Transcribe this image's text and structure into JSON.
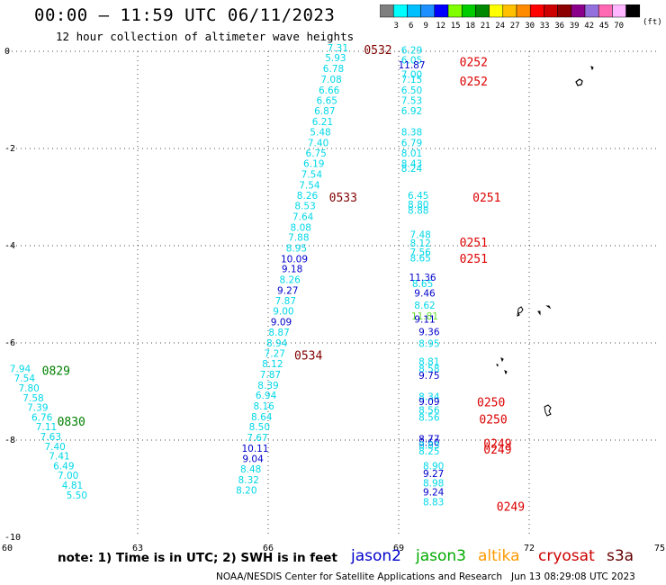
{
  "header": {
    "title": "00:00 – 11:59 UTC 06/11/2023",
    "subtitle": "12 hour collection of altimeter wave heights"
  },
  "colorbar": {
    "colors": [
      "#7f7f7f",
      "#00ffff",
      "#00bfff",
      "#1e90ff",
      "#0000ff",
      "#7fff00",
      "#00cc00",
      "#008800",
      "#ffff00",
      "#ffc000",
      "#ff8c00",
      "#ff0000",
      "#cc0000",
      "#8b0000",
      "#8b008b",
      "#9370db",
      "#ff69b4",
      "#ffb6ff",
      "#000000"
    ],
    "labels": [
      "3",
      "6",
      "9",
      "12",
      "15",
      "18",
      "21",
      "24",
      "27",
      "30",
      "33",
      "36",
      "39",
      "42",
      "45",
      "70"
    ],
    "unit": "(ft)"
  },
  "axes": {
    "x_ticks": [
      "60",
      "63",
      "66",
      "69",
      "72",
      "75"
    ],
    "y_ticks": [
      "0",
      "-2",
      "-4",
      "-6",
      "-8",
      "-10"
    ]
  },
  "tracks": [
    {
      "series": "s3a",
      "color": "#00d8e8",
      "points": [
        {
          "lon": 67.6,
          "lat": 0.0,
          "v": "7.31"
        },
        {
          "lon": 67.55,
          "lat": -0.2,
          "v": "5.93"
        },
        {
          "lon": 67.5,
          "lat": -0.43,
          "v": "6.78"
        },
        {
          "lon": 67.45,
          "lat": -0.65,
          "v": "7.08"
        },
        {
          "lon": 67.4,
          "lat": -0.87,
          "v": "6.66"
        },
        {
          "lon": 67.35,
          "lat": -1.08,
          "v": "6.65"
        },
        {
          "lon": 67.3,
          "lat": -1.3,
          "v": "6.87"
        },
        {
          "lon": 67.25,
          "lat": -1.52,
          "v": "6.21"
        },
        {
          "lon": 67.2,
          "lat": -1.73,
          "v": "5.48"
        },
        {
          "lon": 67.15,
          "lat": -1.95,
          "v": "7.40"
        },
        {
          "lon": 67.1,
          "lat": -2.17,
          "v": "6.75"
        },
        {
          "lon": 67.05,
          "lat": -2.38,
          "v": "6.19"
        },
        {
          "lon": 67.0,
          "lat": -2.6,
          "v": "7.54"
        },
        {
          "lon": 66.95,
          "lat": -2.82,
          "v": "7.54"
        },
        {
          "lon": 66.9,
          "lat": -3.04,
          "v": "8.26"
        },
        {
          "lon": 66.85,
          "lat": -3.25,
          "v": "8.53"
        },
        {
          "lon": 66.8,
          "lat": -3.47,
          "v": "7.64"
        },
        {
          "lon": 66.75,
          "lat": -3.69,
          "v": "8.08"
        },
        {
          "lon": 66.7,
          "lat": -3.9,
          "v": "7.88"
        },
        {
          "lon": 66.65,
          "lat": -4.12,
          "v": "8.95"
        },
        {
          "lon": 66.6,
          "lat": -4.34,
          "v": "10.09",
          "c": "#0000cc"
        },
        {
          "lon": 66.55,
          "lat": -4.55,
          "v": "9.18",
          "c": "#0000cc"
        },
        {
          "lon": 66.5,
          "lat": -4.77,
          "v": "8.26"
        },
        {
          "lon": 66.45,
          "lat": -4.99,
          "v": "9.27",
          "c": "#0000cc"
        },
        {
          "lon": 66.4,
          "lat": -5.2,
          "v": "7.87"
        },
        {
          "lon": 66.35,
          "lat": -5.42,
          "v": "9.00"
        },
        {
          "lon": 66.3,
          "lat": -5.64,
          "v": "9.09",
          "c": "#0000cc"
        },
        {
          "lon": 66.25,
          "lat": -5.85,
          "v": "8.87"
        },
        {
          "lon": 66.2,
          "lat": -6.07,
          "v": "8.94"
        },
        {
          "lon": 66.15,
          "lat": -6.29,
          "v": "7.27"
        },
        {
          "lon": 66.1,
          "lat": -6.5,
          "v": "8.12"
        },
        {
          "lon": 66.05,
          "lat": -6.72,
          "v": "7.87"
        },
        {
          "lon": 66.0,
          "lat": -6.94,
          "v": "8.39"
        },
        {
          "lon": 65.95,
          "lat": -7.15,
          "v": "6.94"
        },
        {
          "lon": 65.9,
          "lat": -7.37,
          "v": "8.16"
        },
        {
          "lon": 65.85,
          "lat": -7.59,
          "v": "8.64"
        },
        {
          "lon": 65.8,
          "lat": -7.8,
          "v": "8.50"
        },
        {
          "lon": 65.75,
          "lat": -8.02,
          "v": "7.67"
        },
        {
          "lon": 65.7,
          "lat": -8.24,
          "v": "10.11",
          "c": "#0000cc"
        },
        {
          "lon": 65.65,
          "lat": -8.45,
          "v": "9.04",
          "c": "#0000cc"
        },
        {
          "lon": 65.6,
          "lat": -8.67,
          "v": "8.48"
        },
        {
          "lon": 65.55,
          "lat": -8.89,
          "v": "8.32"
        },
        {
          "lon": 65.5,
          "lat": -9.1,
          "v": "8.20"
        }
      ]
    },
    {
      "series": "s3a",
      "color": "#00d8e8",
      "points": [
        {
          "lon": 69.3,
          "lat": -0.05,
          "v": "6.29"
        },
        {
          "lon": 69.3,
          "lat": -0.25,
          "v": "6.05"
        },
        {
          "lon": 69.3,
          "lat": -0.35,
          "v": "11.87",
          "c": "#0000cc"
        },
        {
          "lon": 69.3,
          "lat": -0.55,
          "v": "7.00"
        },
        {
          "lon": 69.3,
          "lat": -0.65,
          "v": "7.15"
        },
        {
          "lon": 69.3,
          "lat": -0.87,
          "v": "6.50"
        },
        {
          "lon": 69.3,
          "lat": -1.08,
          "v": "7.53"
        },
        {
          "lon": 69.3,
          "lat": -1.3,
          "v": "6.92"
        },
        {
          "lon": 69.3,
          "lat": -1.73,
          "v": "8.38"
        },
        {
          "lon": 69.3,
          "lat": -1.95,
          "v": "6.79"
        },
        {
          "lon": 69.3,
          "lat": -2.17,
          "v": "8.01"
        },
        {
          "lon": 69.3,
          "lat": -2.38,
          "v": "8.43"
        },
        {
          "lon": 69.3,
          "lat": -2.48,
          "v": "8.24"
        },
        {
          "lon": 69.45,
          "lat": -3.04,
          "v": "6.45"
        },
        {
          "lon": 69.45,
          "lat": -3.22,
          "v": "8.80"
        },
        {
          "lon": 69.45,
          "lat": -3.34,
          "v": "8.88"
        },
        {
          "lon": 69.5,
          "lat": -3.84,
          "v": "7.48"
        },
        {
          "lon": 69.5,
          "lat": -4.02,
          "v": "8.12"
        },
        {
          "lon": 69.5,
          "lat": -4.2,
          "v": "7.56"
        },
        {
          "lon": 69.5,
          "lat": -4.32,
          "v": "8.65"
        },
        {
          "lon": 69.55,
          "lat": -4.72,
          "v": "11.36",
          "c": "#0000cc"
        },
        {
          "lon": 69.55,
          "lat": -4.85,
          "v": "8.65"
        },
        {
          "lon": 69.6,
          "lat": -5.05,
          "v": "9.46",
          "c": "#0000cc"
        },
        {
          "lon": 69.6,
          "lat": -5.3,
          "v": "8.62"
        },
        {
          "lon": 69.6,
          "lat": -5.52,
          "v": "11.81",
          "c": "#66dd33"
        },
        {
          "lon": 69.6,
          "lat": -5.58,
          "v": "9.11",
          "c": "#0000cc"
        },
        {
          "lon": 69.7,
          "lat": -5.84,
          "v": "9.36",
          "c": "#0000cc"
        },
        {
          "lon": 69.7,
          "lat": -6.08,
          "v": "8.95"
        },
        {
          "lon": 69.7,
          "lat": -6.45,
          "v": "8.81"
        },
        {
          "lon": 69.7,
          "lat": -6.6,
          "v": "8.58"
        },
        {
          "lon": 69.7,
          "lat": -6.74,
          "v": "9.75",
          "c": "#0000cc"
        },
        {
          "lon": 69.7,
          "lat": -7.18,
          "v": "8.34"
        },
        {
          "lon": 69.7,
          "lat": -7.28,
          "v": "9.09",
          "c": "#0000cc"
        },
        {
          "lon": 69.7,
          "lat": -7.45,
          "v": "8.56"
        },
        {
          "lon": 69.7,
          "lat": -7.6,
          "v": "8.56"
        },
        {
          "lon": 69.7,
          "lat": -8.05,
          "v": "8.77",
          "c": "#0000cc"
        },
        {
          "lon": 69.7,
          "lat": -8.12,
          "v": "8.60",
          "c": "#0000cc"
        },
        {
          "lon": 69.7,
          "lat": -8.18,
          "v": "8.83"
        },
        {
          "lon": 69.7,
          "lat": -8.3,
          "v": "8.25"
        },
        {
          "lon": 69.8,
          "lat": -8.6,
          "v": "8.90"
        },
        {
          "lon": 69.8,
          "lat": -8.76,
          "v": "9.27",
          "c": "#0000cc"
        },
        {
          "lon": 69.8,
          "lat": -8.95,
          "v": "8.98"
        },
        {
          "lon": 69.8,
          "lat": -9.14,
          "v": "9.24",
          "c": "#0000cc"
        },
        {
          "lon": 69.8,
          "lat": -9.34,
          "v": "8.83"
        }
      ]
    },
    {
      "series": "s3a",
      "color": "#00d8e8",
      "points": [
        {
          "lon": 60.3,
          "lat": -6.6,
          "v": "7.94"
        },
        {
          "lon": 60.4,
          "lat": -6.8,
          "v": "7.54"
        },
        {
          "lon": 60.5,
          "lat": -7.0,
          "v": "7.80"
        },
        {
          "lon": 60.6,
          "lat": -7.2,
          "v": "7.58"
        },
        {
          "lon": 60.7,
          "lat": -7.4,
          "v": "7.39"
        },
        {
          "lon": 60.8,
          "lat": -7.6,
          "v": "6.76"
        },
        {
          "lon": 60.9,
          "lat": -7.8,
          "v": "7.11"
        },
        {
          "lon": 61.0,
          "lat": -8.0,
          "v": "7.63"
        },
        {
          "lon": 61.1,
          "lat": -8.2,
          "v": "7.40"
        },
        {
          "lon": 61.2,
          "lat": -8.4,
          "v": "7.41"
        },
        {
          "lon": 61.3,
          "lat": -8.6,
          "v": "6.49"
        },
        {
          "lon": 61.4,
          "lat": -8.8,
          "v": "7.00"
        },
        {
          "lon": 61.5,
          "lat": -9.0,
          "v": "4.81"
        },
        {
          "lon": 61.6,
          "lat": -9.2,
          "v": "5.50"
        }
      ]
    }
  ],
  "time_labels": [
    {
      "t": "0532",
      "lon": 68.2,
      "lat": 0.0,
      "color": "#800000"
    },
    {
      "t": "0252",
      "lon": 70.4,
      "lat": -0.25,
      "color": "#dd0000"
    },
    {
      "t": "0252",
      "lon": 70.4,
      "lat": -0.65,
      "color": "#dd0000"
    },
    {
      "t": "0533",
      "lon": 67.4,
      "lat": -3.04,
      "color": "#800000"
    },
    {
      "t": "0251",
      "lon": 70.7,
      "lat": -3.04,
      "color": "#dd0000"
    },
    {
      "t": "0251",
      "lon": 70.4,
      "lat": -3.96,
      "color": "#dd0000"
    },
    {
      "t": "0251",
      "lon": 70.4,
      "lat": -4.3,
      "color": "#dd0000"
    },
    {
      "t": "0534",
      "lon": 66.6,
      "lat": -6.29,
      "color": "#800000"
    },
    {
      "t": "0829",
      "lon": 60.8,
      "lat": -6.6,
      "color": "#008000"
    },
    {
      "t": "0250",
      "lon": 70.8,
      "lat": -7.25,
      "color": "#dd0000"
    },
    {
      "t": "0250",
      "lon": 70.85,
      "lat": -7.6,
      "color": "#dd0000"
    },
    {
      "t": "0830",
      "lon": 61.15,
      "lat": -7.65,
      "color": "#008000"
    },
    {
      "t": "0249",
      "lon": 70.95,
      "lat": -8.1,
      "color": "#dd0000"
    },
    {
      "t": "0249",
      "lon": 70.95,
      "lat": -8.22,
      "color": "#dd0000"
    },
    {
      "t": "0249",
      "lon": 71.25,
      "lat": -9.4,
      "color": "#dd0000"
    }
  ],
  "note": "note: 1) Time is in UTC; 2) SWH is in feet",
  "legend": [
    {
      "name": "jason2",
      "color": "#0000cc"
    },
    {
      "name": "jason3",
      "color": "#00aa00"
    },
    {
      "name": "altika",
      "color": "#ff9900"
    },
    {
      "name": "cryosat",
      "color": "#cc0000"
    },
    {
      "name": "s3a",
      "color": "#660000"
    }
  ],
  "credit": "NOAA/NESDIS Center for Satellite Applications and Research   Jun 13 08:29:08 UTC 2023"
}
